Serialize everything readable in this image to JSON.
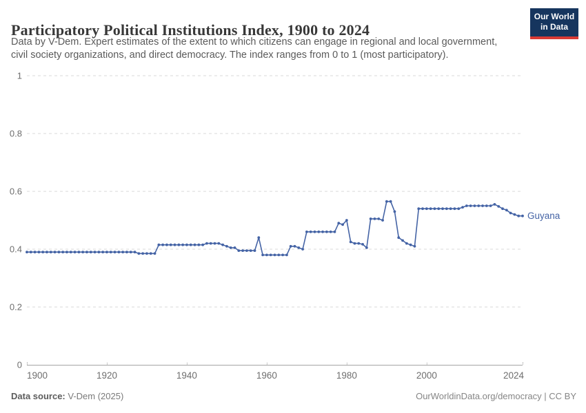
{
  "header": {
    "title": "Participatory Political Institutions Index, 1900 to 2024",
    "subtitle_line1": "Data by V-Dem. Expert estimates of the extent to which citizens can engage in regional and local government,",
    "subtitle_line2": "civil society organizations, and direct democracy. The index ranges from 0 to 1 (most participatory).",
    "logo": {
      "line1": "Our World",
      "line2": "in Data",
      "bg_color": "#16355e",
      "stripe_color": "#d93a35"
    }
  },
  "chart_data": {
    "type": "line",
    "title": "Participatory Political Institutions Index, 1900 to 2024",
    "xlabel": "",
    "ylabel": "",
    "xlim": [
      1900,
      2024
    ],
    "ylim": [
      0,
      1
    ],
    "x_ticks": [
      1900,
      1920,
      1940,
      1960,
      1980,
      2000,
      2024
    ],
    "y_ticks": [
      0,
      0.2,
      0.4,
      0.6,
      0.8,
      1
    ],
    "grid": "horizontal-dashed",
    "legend_position": "end-of-line-label",
    "series": [
      {
        "name": "Guyana",
        "color": "#4463a5",
        "start_year": 1900,
        "values": [
          0.39,
          0.39,
          0.39,
          0.39,
          0.39,
          0.39,
          0.39,
          0.39,
          0.39,
          0.39,
          0.39,
          0.39,
          0.39,
          0.39,
          0.39,
          0.39,
          0.39,
          0.39,
          0.39,
          0.39,
          0.39,
          0.39,
          0.39,
          0.39,
          0.39,
          0.39,
          0.39,
          0.39,
          0.385,
          0.385,
          0.385,
          0.385,
          0.385,
          0.415,
          0.415,
          0.415,
          0.415,
          0.415,
          0.415,
          0.415,
          0.415,
          0.415,
          0.415,
          0.415,
          0.415,
          0.42,
          0.42,
          0.42,
          0.42,
          0.415,
          0.41,
          0.405,
          0.405,
          0.395,
          0.395,
          0.395,
          0.395,
          0.395,
          0.44,
          0.38,
          0.38,
          0.38,
          0.38,
          0.38,
          0.38,
          0.38,
          0.41,
          0.41,
          0.405,
          0.4,
          0.46,
          0.46,
          0.46,
          0.46,
          0.46,
          0.46,
          0.46,
          0.46,
          0.49,
          0.485,
          0.5,
          0.425,
          0.42,
          0.42,
          0.417,
          0.405,
          0.505,
          0.505,
          0.505,
          0.5,
          0.565,
          0.565,
          0.53,
          0.44,
          0.43,
          0.42,
          0.415,
          0.41,
          0.54,
          0.54,
          0.54,
          0.54,
          0.54,
          0.54,
          0.54,
          0.54,
          0.54,
          0.54,
          0.54,
          0.545,
          0.55,
          0.55,
          0.55,
          0.55,
          0.55,
          0.55,
          0.55,
          0.555,
          0.548,
          0.54,
          0.535,
          0.525,
          0.52,
          0.515,
          0.515
        ]
      }
    ]
  },
  "footer": {
    "source_label": "Data source:",
    "source_value": " V-Dem (2025)",
    "link": "OurWorldinData.org/democracy",
    "separator": " | ",
    "license": "CC BY"
  }
}
